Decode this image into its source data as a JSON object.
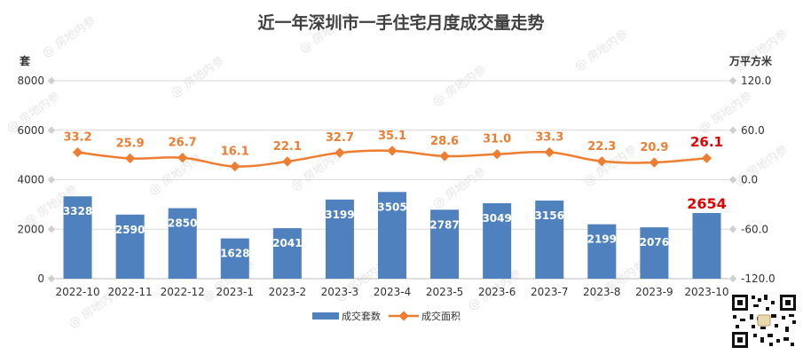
{
  "chart_data": {
    "type": "bar",
    "title": "近一年深圳市一手住宅月度成交量走势",
    "categories": [
      "2022-10",
      "2022-11",
      "2022-12",
      "2023-1",
      "2023-2",
      "2023-3",
      "2023-4",
      "2023-5",
      "2023-6",
      "2023-7",
      "2023-8",
      "2023-9",
      "2023-10"
    ],
    "left_axis": {
      "unit": "套",
      "min": 0,
      "max": 8000,
      "ticks": [
        "0",
        "2000",
        "4000",
        "6000",
        "8000"
      ]
    },
    "right_axis": {
      "unit": "万平方米",
      "min": -120,
      "max": 120,
      "ticks": [
        "-120.0",
        "-60.0",
        "0.0",
        "60.0",
        "120.0"
      ]
    },
    "series": [
      {
        "name": "成交套数",
        "type": "bar",
        "axis": "left",
        "color": "#4E81BD",
        "values": [
          3328,
          2590,
          2850,
          1628,
          2041,
          3199,
          3505,
          2787,
          3049,
          3156,
          2199,
          2076,
          2654
        ],
        "labels": [
          "3328",
          "2590",
          "2850",
          "1628",
          "2041",
          "3199",
          "3505",
          "2787",
          "3049",
          "3156",
          "2199",
          "2076",
          "2654"
        ]
      },
      {
        "name": "成交面积",
        "type": "line",
        "axis": "right",
        "color": "#ED7D31",
        "values": [
          33.2,
          25.9,
          26.7,
          16.1,
          22.1,
          32.7,
          35.1,
          28.6,
          31.0,
          33.3,
          22.3,
          20.9,
          26.1
        ],
        "labels": [
          "33.2",
          "25.9",
          "26.7",
          "16.1",
          "22.1",
          "32.7",
          "35.1",
          "28.6",
          "31.0",
          "33.3",
          "22.3",
          "20.9",
          "26.1"
        ]
      }
    ],
    "highlight_color": "#E00000",
    "highlight_index": 12,
    "grid": true,
    "legend_position": "bottom"
  },
  "watermark_text": "房地内参",
  "qr_code_icon": "qr-code-icon"
}
